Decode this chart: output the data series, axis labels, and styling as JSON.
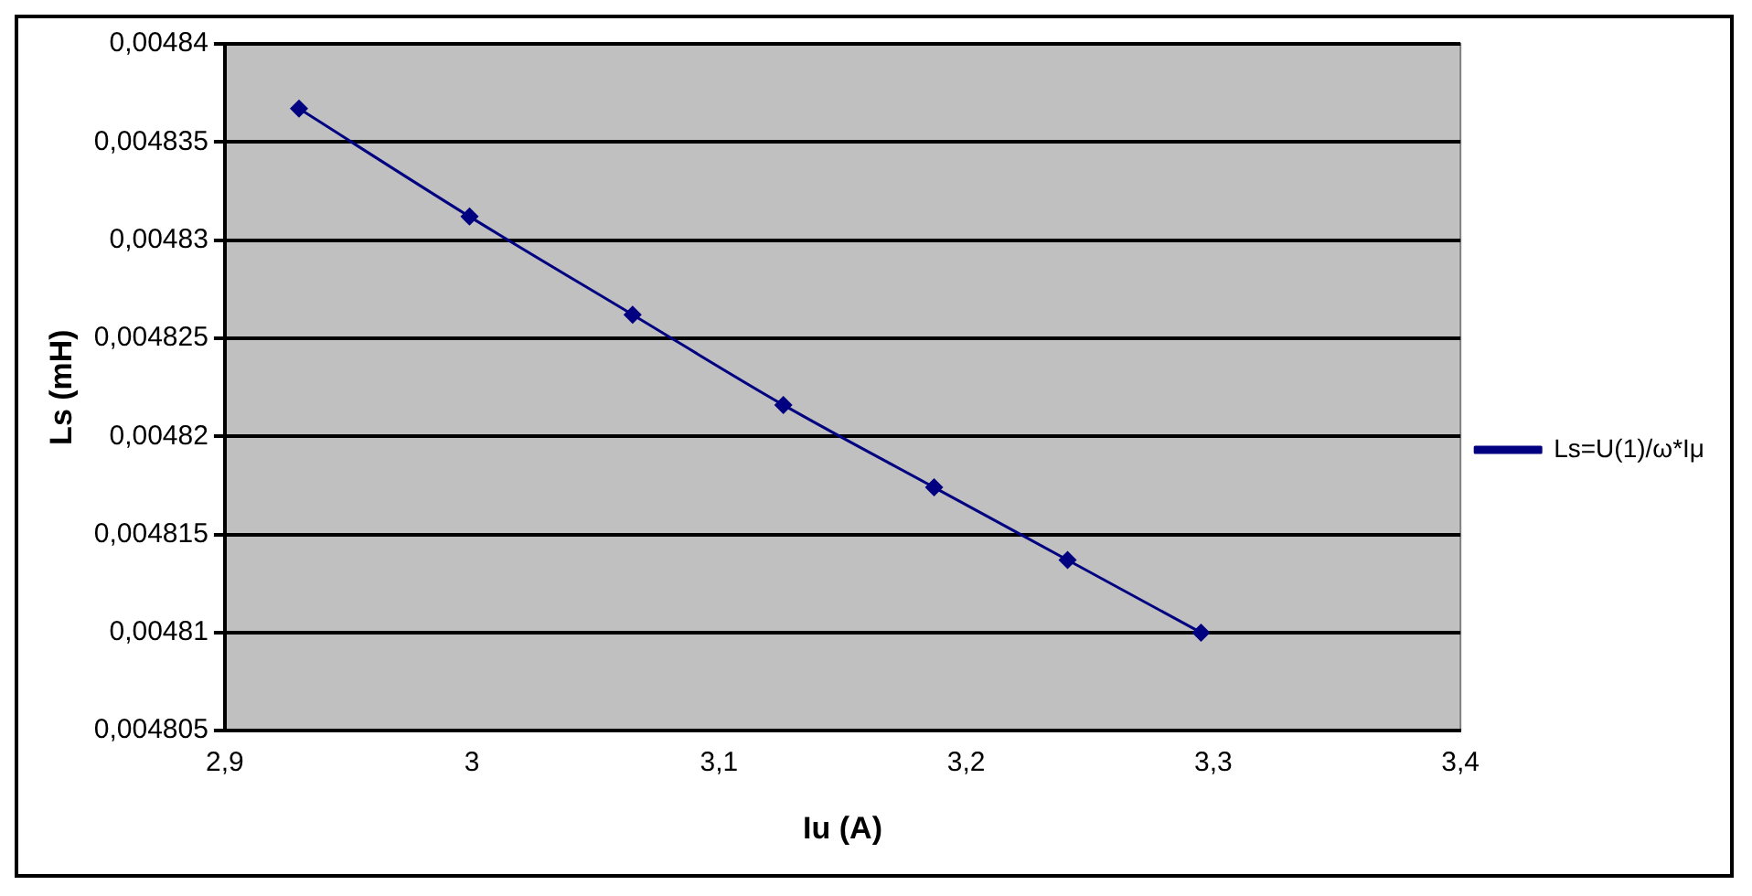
{
  "chart_data": {
    "type": "line",
    "xlabel": "Iu (A)",
    "ylabel": "Ls (mH)",
    "x": [
      2.93,
      2.999,
      3.065,
      3.126,
      3.187,
      3.241,
      3.295
    ],
    "series": [
      {
        "name": "Ls=U(1)/ω*Iμ",
        "color": "#000080",
        "values": [
          0.0048367,
          0.0048312,
          0.0048262,
          0.0048216,
          0.0048174,
          0.0048137,
          0.00481
        ]
      }
    ],
    "xlim": [
      2.9,
      3.4
    ],
    "xticks": [
      {
        "value": 2.9,
        "label": "2,9"
      },
      {
        "value": 3,
        "label": "3"
      },
      {
        "value": 3.1,
        "label": "3,1"
      },
      {
        "value": 3.2,
        "label": "3,2"
      },
      {
        "value": 3.3,
        "label": "3,3"
      },
      {
        "value": 3.4,
        "label": "3,4"
      }
    ],
    "ylim": [
      0.004805,
      0.00484
    ],
    "yticks": [
      {
        "value": 0.004805,
        "label": "0,004805"
      },
      {
        "value": 0.00481,
        "label": "0,00481"
      },
      {
        "value": 0.004815,
        "label": "0,004815"
      },
      {
        "value": 0.00482,
        "label": "0,00482"
      },
      {
        "value": 0.004825,
        "label": "0,004825"
      },
      {
        "value": 0.00483,
        "label": "0,00483"
      },
      {
        "value": 0.004835,
        "label": "0,004835"
      },
      {
        "value": 0.00484,
        "label": "0,00484"
      }
    ],
    "grid": "y",
    "legend": "right",
    "marker": "diamond",
    "line_style": "solid"
  }
}
